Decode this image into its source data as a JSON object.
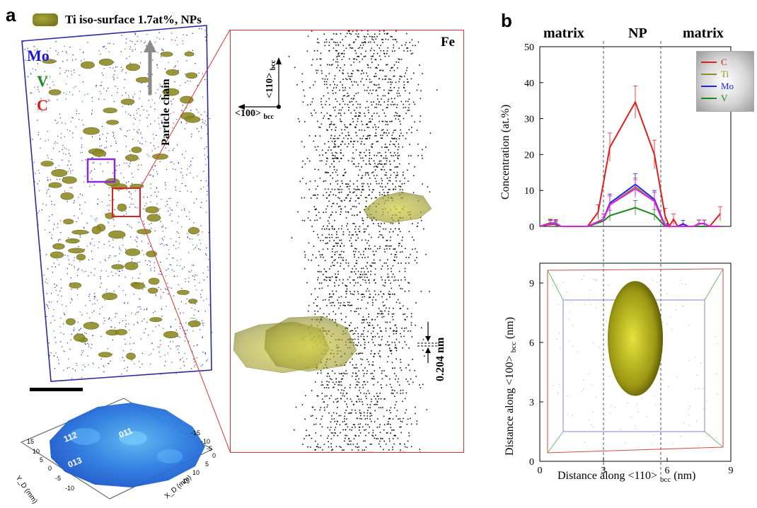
{
  "panel_a": {
    "letter": "a",
    "legend_label": "Ti iso-surface 1.7at%, NPs",
    "legend_color": "#7c7a1a",
    "elements": [
      {
        "label": "Mo",
        "color": "#1a1adc"
      },
      {
        "label": "V",
        "color": "#1a8c1a"
      },
      {
        "label": "C",
        "color": "#e01414"
      }
    ],
    "particle_chain_label": "Particle chain",
    "zoom": {
      "element": "Fe",
      "direction_up": "<110>",
      "direction_left": "<100>",
      "subscript": "bcc",
      "spacing_label": "0.204 nm"
    },
    "detector_map": {
      "poles": [
        "112",
        "011",
        "013"
      ],
      "y_axis_label": "Y_D (mm)",
      "x_axis_label": "X_D (mm)",
      "y_ticks": [
        "15",
        "10",
        "5",
        "0",
        "-5",
        "-10"
      ],
      "x_ticks": [
        "0",
        "5",
        "10",
        "15"
      ],
      "x_ticks_neg": [
        "-15",
        "-10",
        "-5"
      ]
    }
  },
  "panel_b": {
    "letter": "b",
    "region_labels": [
      "matrix",
      "NP",
      "matrix"
    ],
    "chart_data": [
      {
        "type": "line",
        "ylabel": "Concentration (at.%)",
        "xlim": [
          0,
          9
        ],
        "ylim": [
          0,
          50
        ],
        "yticks": [
          0,
          10,
          20,
          30,
          40,
          50
        ],
        "legend_position": "top-right",
        "region_boundaries": [
          3,
          5.7
        ],
        "series": [
          {
            "name": "C",
            "color": "#e01e1e",
            "x": [
              0.0,
              0.5,
              0.75,
              1.0,
              1.25,
              2.25,
              2.75,
              3.3,
              4.5,
              5.4,
              5.9,
              6.1,
              6.3,
              6.5,
              7.25,
              7.5,
              7.75,
              8.0,
              8.5
            ],
            "y": [
              0,
              0.6,
              0.6,
              0,
              0,
              0,
              4,
              22,
              34.6,
              20,
              3,
              0,
              2,
              0,
              0,
              0,
              0,
              0,
              3.5
            ],
            "err": [
              0,
              1,
              1,
              0,
              0,
              0,
              2,
              4,
              4.5,
              4,
              2,
              0,
              1.5,
              0,
              0,
              0,
              0,
              0,
              2
            ]
          },
          {
            "name": "Ti",
            "color": "#8e8e20",
            "x": [
              0.0,
              0.5,
              0.75,
              1.0,
              1.25,
              2.25,
              3.0,
              3.3,
              4.5,
              5.4,
              5.9,
              6.1,
              6.5,
              7.25,
              7.5,
              7.75,
              8.0,
              8.5
            ],
            "y": [
              0,
              0.8,
              0.8,
              0,
              0,
              0,
              2,
              6,
              11,
              7,
              0,
              0,
              0,
              0,
              0.7,
              0.7,
              0,
              0
            ],
            "err": [
              0,
              1,
              1,
              0,
              0,
              0,
              1.5,
              2.5,
              2.5,
              2.5,
              0,
              0,
              0,
              0,
              1,
              1,
              0,
              0
            ]
          },
          {
            "name": "Mo",
            "color": "#2222e6",
            "x": [
              0.0,
              0.5,
              0.75,
              1.0,
              1.25,
              2.25,
              3.0,
              3.3,
              4.5,
              5.4,
              5.9,
              6.1,
              6.5,
              6.75,
              7.0,
              7.25,
              7.5,
              7.75,
              8.0,
              8.5
            ],
            "y": [
              0,
              0.9,
              0.9,
              0,
              0,
              0,
              2,
              6.5,
              11.7,
              7.5,
              0.2,
              0,
              0,
              0.7,
              0,
              0,
              0.8,
              0.8,
              0,
              0
            ],
            "err": [
              0,
              1,
              1,
              0,
              0,
              0,
              1.5,
              2.5,
              3,
              2.5,
              0.5,
              0,
              0,
              1,
              0,
              0,
              1,
              1,
              0,
              0
            ]
          },
          {
            "name": "V",
            "color": "#1a881a",
            "x": [
              0.0,
              0.5,
              0.75,
              1.0,
              1.25,
              2.25,
              3.0,
              3.3,
              4.5,
              5.4,
              5.9,
              6.1,
              8.5
            ],
            "y": [
              0,
              1.0,
              0.5,
              0,
              0,
              0,
              1.5,
              3,
              5.2,
              3.2,
              0,
              0,
              0
            ],
            "err": [
              0,
              1,
              0.8,
              0,
              0,
              0,
              1,
              1.5,
              2,
              1.5,
              0,
              0,
              0
            ]
          },
          {
            "color": "#e020e0",
            "x": [
              0.0,
              0.5,
              0.75,
              1.0,
              1.25,
              2.25,
              3.0,
              3.3,
              4.5,
              5.4,
              5.9,
              6.1,
              6.5,
              7.25,
              7.5,
              7.75,
              8.0,
              8.5
            ],
            "y": [
              0,
              0.8,
              0.8,
              0,
              0,
              0,
              2,
              6,
              10.5,
              7,
              0,
              0,
              0,
              0,
              0.8,
              0.8,
              0,
              0
            ],
            "err": [
              0,
              1,
              1,
              0,
              0,
              0,
              1.5,
              2.5,
              2.5,
              2.5,
              0,
              0,
              0,
              0,
              1,
              1,
              0,
              0
            ]
          }
        ]
      },
      {
        "type": "scatter",
        "xlabel": "Distance along <110>",
        "xlabel_sub": "bcc",
        "xlabel_unit": "(nm)",
        "ylabel": "Distance along <100>",
        "ylabel_sub": "bcc",
        "ylabel_unit": "(nm)",
        "xlim": [
          0,
          9
        ],
        "ylim": [
          0,
          10
        ],
        "xticks": [
          0,
          3,
          6,
          9
        ],
        "yticks": [
          0,
          3,
          6,
          9
        ],
        "particle_center": [
          4.5,
          6.2
        ],
        "particle_semi_axes": [
          1.3,
          2.9
        ]
      }
    ]
  },
  "scale_bar": {
    "color": "#000000"
  }
}
